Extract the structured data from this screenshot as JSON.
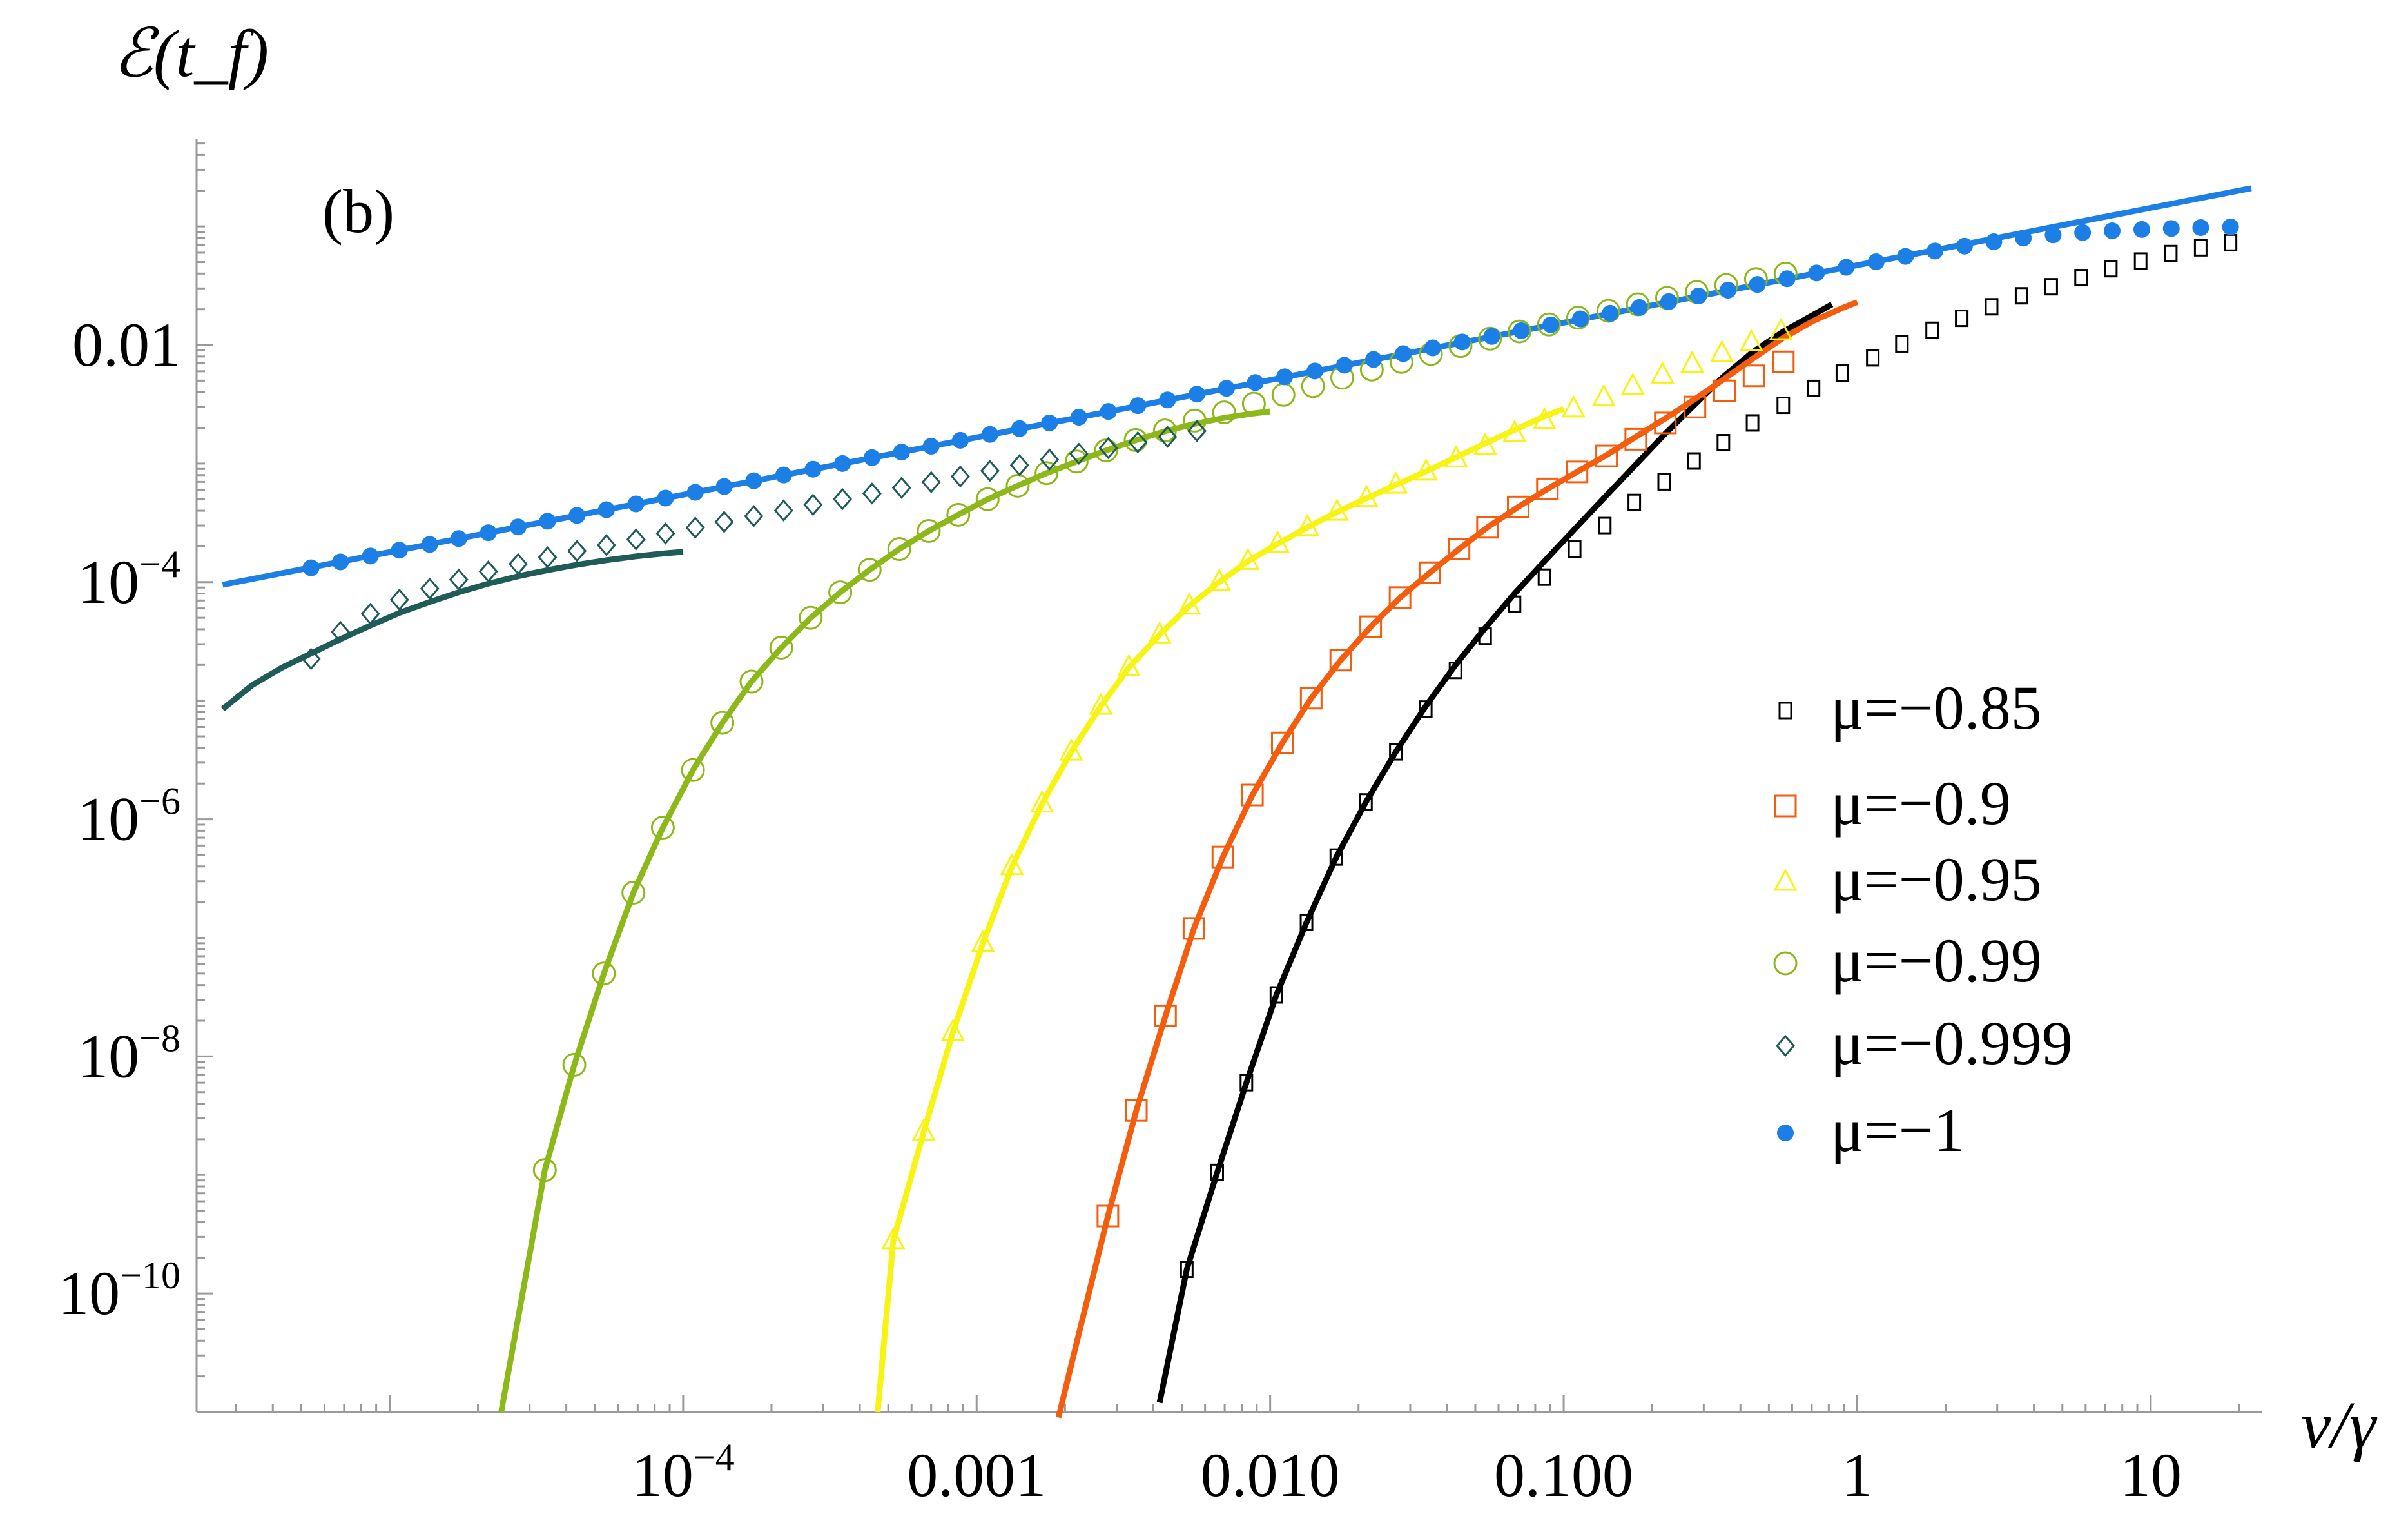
{
  "chart_data": {
    "type": "scatter",
    "panel_label": "(b)",
    "xlabel": "ν/γ",
    "ylabel": "ℰ(t_f)",
    "x_scale": "log",
    "y_scale": "log",
    "xlim": [
      2.2e-06,
      24
    ],
    "ylim": [
      1e-11,
      0.55
    ],
    "x_ticks": [
      {
        "value": 0.0001,
        "mantissa": "10",
        "exp": "−4"
      },
      {
        "value": 0.001,
        "mantissa": "0.001",
        "exp": ""
      },
      {
        "value": 0.01,
        "mantissa": "0.010",
        "exp": ""
      },
      {
        "value": 0.1,
        "mantissa": "0.100",
        "exp": ""
      },
      {
        "value": 1,
        "mantissa": "1",
        "exp": ""
      },
      {
        "value": 10,
        "mantissa": "10",
        "exp": ""
      }
    ],
    "y_ticks": [
      {
        "value": 0.01,
        "mantissa": "0.01",
        "exp": ""
      },
      {
        "value": 0.0001,
        "mantissa": "10",
        "exp": "−4"
      },
      {
        "value": 1e-06,
        "mantissa": "10",
        "exp": "−6"
      },
      {
        "value": 1e-08,
        "mantissa": "10",
        "exp": "−8"
      },
      {
        "value": 1e-10,
        "mantissa": "10",
        "exp": "−10"
      }
    ],
    "legend_position": "right",
    "series": [
      {
        "name": "μ=−0.85",
        "color": "#000000",
        "marker": "small-square",
        "x": [
          0.0052,
          0.0066,
          0.0083,
          0.0105,
          0.0133,
          0.0168,
          0.0212,
          0.0268,
          0.0339,
          0.0428,
          0.054,
          0.068,
          0.086,
          0.109,
          0.138,
          0.174,
          0.22,
          0.278,
          0.35,
          0.44,
          0.56,
          0.71,
          0.89,
          1.13,
          1.42,
          1.8,
          2.27,
          2.87,
          3.63,
          4.58,
          5.79,
          7.31,
          9.24,
          11.7,
          14.8,
          18.7
        ],
        "y": [
          1.6e-10,
          1.05e-09,
          6e-09,
          3.3e-08,
          1.35e-07,
          4.8e-07,
          1.4e-06,
          3.7e-06,
          8.5e-06,
          1.8e-05,
          3.5e-05,
          6.5e-05,
          0.00011,
          0.00019,
          0.0003,
          0.00047,
          0.0007,
          0.00105,
          0.0015,
          0.0022,
          0.0031,
          0.0043,
          0.0058,
          0.0078,
          0.0102,
          0.0133,
          0.0168,
          0.021,
          0.026,
          0.031,
          0.037,
          0.044,
          0.051,
          0.059,
          0.066,
          0.073
        ]
      },
      {
        "name": "μ=−0.9",
        "color": "#f45c0e",
        "marker": "open-square",
        "x": [
          0.0028,
          0.0035,
          0.0044,
          0.0055,
          0.0069,
          0.0087,
          0.011,
          0.0138,
          0.0174,
          0.022,
          0.0277,
          0.035,
          0.044,
          0.055,
          0.07,
          0.088,
          0.111,
          0.14,
          0.176,
          0.222,
          0.28,
          0.353,
          0.445,
          0.56
        ],
        "y": [
          4.5e-10,
          3.5e-09,
          2.2e-08,
          1.2e-07,
          4.8e-07,
          1.6e-06,
          4.4e-06,
          1.05e-05,
          2.2e-05,
          4.2e-05,
          7.4e-05,
          0.00012,
          0.00019,
          0.00029,
          0.00043,
          0.00061,
          0.00085,
          0.00116,
          0.0016,
          0.0022,
          0.003,
          0.0041,
          0.0055,
          0.0072
        ]
      },
      {
        "name": "μ=−0.95",
        "color": "#f7f312",
        "marker": "open-triangle",
        "x": [
          0.00052,
          0.00066,
          0.00083,
          0.00105,
          0.00132,
          0.00167,
          0.0021,
          0.00265,
          0.0033,
          0.0042,
          0.0053,
          0.0067,
          0.0084,
          0.0106,
          0.0134,
          0.0169,
          0.0213,
          0.0268,
          0.034,
          0.043,
          0.054,
          0.068,
          0.086,
          0.108,
          0.137,
          0.172,
          0.217,
          0.274,
          0.346,
          0.436,
          0.55
        ],
        "y": [
          2.8e-10,
          2.3e-09,
          1.6e-08,
          9e-08,
          4e-07,
          1.35e-06,
          3.7e-06,
          9e-06,
          1.9e-05,
          3.6e-05,
          6.3e-05,
          0.0001,
          0.00015,
          0.00021,
          0.00029,
          0.00039,
          0.00051,
          0.00066,
          0.00085,
          0.0011,
          0.0014,
          0.0018,
          0.0023,
          0.0029,
          0.0036,
          0.0045,
          0.0056,
          0.0069,
          0.0085,
          0.0105,
          0.013
        ]
      },
      {
        "name": "μ=−0.99",
        "color": "#8db81a",
        "marker": "open-circle",
        "x": [
          3.38e-05,
          4.26e-05,
          5.37e-05,
          6.77e-05,
          8.53e-05,
          0.000108,
          0.000136,
          0.000171,
          0.000216,
          0.000272,
          0.000343,
          0.000432,
          0.000545,
          0.000687,
          0.000866,
          0.00109,
          0.00138,
          0.00173,
          0.00219,
          0.00276,
          0.00348,
          0.00438,
          0.00553,
          0.00697,
          0.0088,
          0.0111,
          0.014,
          0.0176,
          0.0222,
          0.028,
          0.0353,
          0.0445,
          0.0561,
          0.0707,
          0.0891,
          0.112,
          0.142,
          0.179,
          0.225,
          0.284,
          0.358,
          0.452,
          0.57
        ],
        "y": [
          1.1e-09,
          8.5e-09,
          5e-08,
          2.4e-07,
          8.5e-07,
          2.6e-06,
          6.5e-06,
          1.45e-05,
          2.8e-05,
          5e-05,
          8.2e-05,
          0.000127,
          0.00019,
          0.00027,
          0.00037,
          0.0005,
          0.00065,
          0.00083,
          0.00104,
          0.00129,
          0.00158,
          0.0019,
          0.0023,
          0.0027,
          0.0032,
          0.0038,
          0.0045,
          0.0053,
          0.0062,
          0.0072,
          0.0084,
          0.0098,
          0.0113,
          0.013,
          0.0149,
          0.017,
          0.0194,
          0.022,
          0.025,
          0.028,
          0.032,
          0.036,
          0.04
        ]
      },
      {
        "name": "μ=−0.999",
        "color": "#1f5c58",
        "marker": "open-diamond",
        "x": [
          5.4e-06,
          6.8e-06,
          8.6e-06,
          1.08e-05,
          1.37e-05,
          1.72e-05,
          2.17e-05,
          2.74e-05,
          3.45e-05,
          4.35e-05,
          5.48e-05,
          6.91e-05,
          8.71e-05,
          0.00011,
          0.000138,
          0.000174,
          0.00022,
          0.000277,
          0.000349,
          0.00044,
          0.000555,
          0.0007,
          0.00088,
          0.00111,
          0.0014,
          0.00177,
          0.00223,
          0.00281,
          0.00354,
          0.00447,
          0.00563
        ],
        "y": [
          2.25e-05,
          3.8e-05,
          5.4e-05,
          7.1e-05,
          8.8e-05,
          0.000105,
          0.000123,
          0.000142,
          0.000162,
          0.000183,
          0.000205,
          0.000229,
          0.000257,
          0.000288,
          0.000322,
          0.00036,
          0.000402,
          0.000449,
          0.000501,
          0.000559,
          0.000624,
          0.000697,
          0.000778,
          0.000868,
          0.00097,
          0.00108,
          0.00121,
          0.00135,
          0.00151,
          0.00168,
          0.00188
        ]
      },
      {
        "name": "μ=−1",
        "color": "#1b7fe6",
        "marker": "filled-circle",
        "x": [
          5.4e-06,
          6.8e-06,
          8.6e-06,
          1.08e-05,
          1.37e-05,
          1.72e-05,
          2.17e-05,
          2.74e-05,
          3.45e-05,
          4.35e-05,
          5.48e-05,
          6.91e-05,
          8.71e-05,
          0.00011,
          0.000138,
          0.000174,
          0.00022,
          0.000277,
          0.000349,
          0.00044,
          0.000555,
          0.0007,
          0.00088,
          0.00111,
          0.0014,
          0.00177,
          0.00223,
          0.00281,
          0.00354,
          0.00447,
          0.00563,
          0.0071,
          0.0089,
          0.0112,
          0.0142,
          0.0179,
          0.0225,
          0.0284,
          0.0358,
          0.0451,
          0.0569,
          0.0717,
          0.0904,
          0.114,
          0.144,
          0.181,
          0.228,
          0.288,
          0.363,
          0.457,
          0.577,
          0.727,
          0.917,
          1.16,
          1.46,
          1.84,
          2.32,
          2.92,
          3.68,
          4.65,
          5.86,
          7.39,
          9.32,
          11.75,
          14.8,
          18.7
        ],
        "y": [
          0.000132,
          0.000148,
          0.000166,
          0.000186,
          0.000208,
          0.000233,
          0.000261,
          0.000292,
          0.000326,
          0.000365,
          0.000408,
          0.000457,
          0.000511,
          0.000572,
          0.00064,
          0.000716,
          0.000801,
          0.000896,
          0.001,
          0.00112,
          0.00125,
          0.0014,
          0.00157,
          0.00176,
          0.00197,
          0.0022,
          0.00246,
          0.00275,
          0.00308,
          0.00344,
          0.00385,
          0.00431,
          0.00482,
          0.00539,
          0.00603,
          0.00675,
          0.00755,
          0.00845,
          0.00945,
          0.0106,
          0.0118,
          0.0132,
          0.0148,
          0.0166,
          0.0185,
          0.0207,
          0.0232,
          0.0259,
          0.029,
          0.0324,
          0.0362,
          0.0405,
          0.0452,
          0.0503,
          0.0559,
          0.062,
          0.0682,
          0.0742,
          0.0798,
          0.0848,
          0.0888,
          0.0918,
          0.0942,
          0.0961,
          0.0977,
          0.099
        ]
      }
    ],
    "fit_curves": [
      {
        "color": "#000000",
        "x": [
          0.0042,
          0.0052,
          0.0066,
          0.0083,
          0.0105,
          0.0133,
          0.0168,
          0.0212,
          0.0268,
          0.0339,
          0.0428,
          0.054,
          0.068,
          0.086,
          0.109,
          0.138,
          0.174,
          0.22,
          0.278,
          0.35,
          0.44,
          0.56,
          0.71,
          0.82
        ],
        "y": [
          1.2e-11,
          1.6e-10,
          1.05e-09,
          6e-09,
          3.3e-08,
          1.35e-07,
          4.8e-07,
          1.4e-06,
          3.7e-06,
          9e-06,
          2e-05,
          4.1e-05,
          8e-05,
          0.00015,
          0.00028,
          0.00052,
          0.00095,
          0.00175,
          0.0031,
          0.0054,
          0.0087,
          0.013,
          0.018,
          0.022
        ]
      },
      {
        "color": "#f45c0e",
        "x": [
          0.0019,
          0.0022,
          0.0028,
          0.0035,
          0.0044,
          0.0055,
          0.0069,
          0.0087,
          0.011,
          0.0138,
          0.0174,
          0.022,
          0.0277,
          0.035,
          0.044,
          0.055,
          0.07,
          0.088,
          0.111,
          0.14,
          0.176,
          0.222,
          0.28,
          0.353,
          0.445,
          0.56,
          0.71,
          0.89,
          1.0
        ],
        "y": [
          9e-12,
          4e-11,
          4.5e-10,
          3.5e-09,
          2.2e-08,
          1.2e-07,
          4.8e-07,
          1.6e-06,
          4.4e-06,
          1.05e-05,
          2.2e-05,
          4.2e-05,
          7.4e-05,
          0.00012,
          0.00019,
          0.00029,
          0.00043,
          0.00061,
          0.00085,
          0.00118,
          0.00168,
          0.0024,
          0.0035,
          0.0052,
          0.0078,
          0.0115,
          0.016,
          0.0205,
          0.023
        ]
      },
      {
        "color": "#f7f312",
        "x": [
          0.00046,
          0.00052,
          0.00066,
          0.00083,
          0.00105,
          0.00132,
          0.00167,
          0.0021,
          0.00265,
          0.0033,
          0.0042,
          0.0053,
          0.0067,
          0.0084,
          0.0106,
          0.0134,
          0.0169,
          0.0213,
          0.0268,
          0.034,
          0.043,
          0.054,
          0.068,
          0.086,
          0.1
        ],
        "y": [
          1e-11,
          2.8e-10,
          2.3e-09,
          1.6e-08,
          9e-08,
          4e-07,
          1.35e-06,
          3.7e-06,
          9e-06,
          1.9e-05,
          3.6e-05,
          6.3e-05,
          0.0001,
          0.00015,
          0.00021,
          0.00029,
          0.00039,
          0.00051,
          0.00066,
          0.00086,
          0.00113,
          0.00148,
          0.00192,
          0.0025,
          0.0029
        ]
      },
      {
        "color": "#8db81a",
        "x": [
          2.4e-05,
          3.38e-05,
          4.26e-05,
          5.37e-05,
          6.77e-05,
          8.53e-05,
          0.000108,
          0.000136,
          0.000171,
          0.000216,
          0.000272,
          0.000343,
          0.000432,
          0.000545,
          0.000687,
          0.000866,
          0.00109,
          0.00138,
          0.00173,
          0.00219,
          0.00276,
          0.00348,
          0.00438,
          0.00553,
          0.00697,
          0.0088,
          0.01
        ],
        "y": [
          1e-11,
          1.1e-09,
          8.5e-09,
          5e-08,
          2.4e-07,
          8.5e-07,
          2.6e-06,
          6.5e-06,
          1.45e-05,
          2.8e-05,
          5e-05,
          8.2e-05,
          0.000127,
          0.00019,
          0.00027,
          0.00037,
          0.0005,
          0.00065,
          0.00083,
          0.00104,
          0.00129,
          0.00157,
          0.00187,
          0.00216,
          0.00243,
          0.00265,
          0.00275
        ]
      },
      {
        "color": "#1f5c58",
        "x": [
          2.7e-06,
          3.4e-06,
          4.3e-06,
          5.4e-06,
          6.8e-06,
          8.6e-06,
          1.08e-05,
          1.37e-05,
          1.72e-05,
          2.17e-05,
          2.74e-05,
          3.45e-05,
          4.35e-05,
          5.48e-05,
          6.91e-05,
          8.71e-05,
          0.0001
        ],
        "y": [
          8.5e-06,
          1.35e-05,
          1.9e-05,
          2.5e-05,
          3.3e-05,
          4.3e-05,
          5.5e-05,
          6.8e-05,
          8.2e-05,
          9.7e-05,
          0.000112,
          0.000126,
          0.00014,
          0.000153,
          0.000165,
          0.000175,
          0.00018
        ]
      },
      {
        "color": "#1b7fe6",
        "x": [
          2.7e-06,
          22
        ],
        "y": [
          9.5e-05,
          0.21
        ]
      }
    ]
  }
}
